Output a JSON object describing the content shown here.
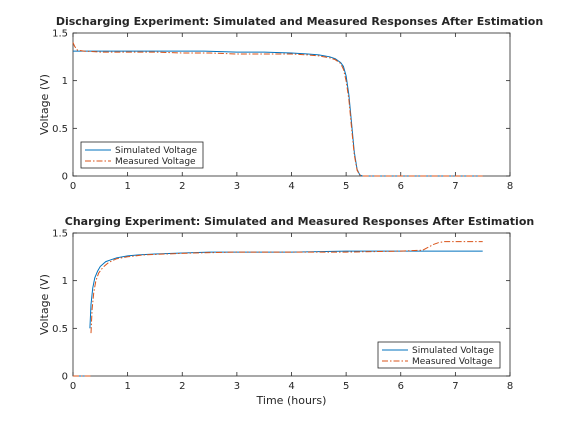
{
  "colors": {
    "simulated": "#0072BD",
    "measured": "#D95319",
    "axes": "#262626"
  },
  "chart_data": [
    {
      "type": "line",
      "title": "Discharging Experiment: Simulated and Measured Responses After Estimation",
      "xlabel": "",
      "ylabel": "Voltage (V)",
      "xlim": [
        0,
        8
      ],
      "ylim": [
        0,
        1.5
      ],
      "xticks": [
        "0",
        "1",
        "2",
        "3",
        "4",
        "5",
        "6",
        "7",
        "8"
      ],
      "yticks": [
        "0",
        "0.5",
        "1",
        "1.5"
      ],
      "grid": false,
      "legend_position": "bottom-left",
      "series": [
        {
          "name": "Simulated Voltage",
          "style": "solid",
          "x": [
            0,
            0.5,
            1,
            1.5,
            2,
            2.4,
            3,
            3.5,
            4,
            4.3,
            4.5,
            4.7,
            4.8,
            4.9,
            4.95,
            5.0,
            5.05,
            5.1,
            5.15,
            5.2,
            5.25,
            5.3,
            6,
            7,
            7.5
          ],
          "y": [
            1.31,
            1.31,
            1.31,
            1.31,
            1.31,
            1.31,
            1.3,
            1.3,
            1.29,
            1.28,
            1.27,
            1.25,
            1.23,
            1.19,
            1.15,
            1.05,
            0.85,
            0.55,
            0.25,
            0.07,
            0.01,
            0,
            0,
            0,
            0
          ]
        },
        {
          "name": "Measured Voltage",
          "style": "dash-dot",
          "x": [
            0,
            0.03,
            0.08,
            0.2,
            0.5,
            1,
            1.5,
            2,
            2.5,
            3,
            3.5,
            4,
            4.3,
            4.5,
            4.7,
            4.8,
            4.9,
            4.95,
            5.0,
            5.05,
            5.1,
            5.15,
            5.2,
            5.25,
            5.3,
            5.35,
            6,
            7,
            7.5
          ],
          "y": [
            1.4,
            1.36,
            1.32,
            1.31,
            1.3,
            1.3,
            1.3,
            1.29,
            1.29,
            1.28,
            1.28,
            1.28,
            1.27,
            1.26,
            1.24,
            1.22,
            1.18,
            1.12,
            1.0,
            0.8,
            0.5,
            0.22,
            0.06,
            0.01,
            0,
            0,
            0,
            0,
            0
          ]
        }
      ]
    },
    {
      "type": "line",
      "title": "Charging Experiment: Simulated and Measured Responses After Estimation",
      "xlabel": "Time (hours)",
      "ylabel": "Voltage (V)",
      "xlim": [
        0,
        8
      ],
      "ylim": [
        0,
        1.5
      ],
      "xticks": [
        "0",
        "1",
        "2",
        "3",
        "4",
        "5",
        "6",
        "7",
        "8"
      ],
      "yticks": [
        "0",
        "0.5",
        "1",
        "1.5"
      ],
      "grid": false,
      "legend_position": "bottom-right",
      "series": [
        {
          "name": "Simulated Voltage",
          "style": "solid",
          "x": [
            0,
            0.3,
            0.31,
            0.33,
            0.36,
            0.4,
            0.45,
            0.5,
            0.6,
            0.7,
            0.8,
            1.0,
            1.2,
            1.5,
            2.0,
            2.5,
            3,
            4,
            5,
            6,
            7,
            7.5
          ],
          "y": [
            0,
            0,
            0.5,
            0.75,
            0.92,
            1.03,
            1.1,
            1.15,
            1.2,
            1.22,
            1.24,
            1.26,
            1.27,
            1.28,
            1.29,
            1.3,
            1.3,
            1.3,
            1.31,
            1.31,
            1.31,
            1.31
          ],
          "segments": [
            [
              0,
              1
            ],
            [
              2,
              21
            ]
          ]
        },
        {
          "name": "Measured Voltage",
          "style": "dash-dot",
          "x": [
            0,
            0.33,
            0.33,
            0.35,
            0.38,
            0.42,
            0.47,
            0.55,
            0.65,
            0.8,
            1.0,
            1.3,
            1.7,
            2.2,
            3,
            4,
            5,
            6,
            6.4,
            6.5,
            6.6,
            6.7,
            6.8,
            7,
            7.5
          ],
          "y": [
            0,
            0,
            0.45,
            0.7,
            0.88,
            1.0,
            1.08,
            1.14,
            1.19,
            1.23,
            1.25,
            1.27,
            1.28,
            1.29,
            1.3,
            1.3,
            1.3,
            1.31,
            1.32,
            1.35,
            1.38,
            1.4,
            1.41,
            1.41,
            1.41
          ],
          "segments": [
            [
              0,
              1
            ],
            [
              2,
              24
            ]
          ]
        }
      ]
    }
  ]
}
